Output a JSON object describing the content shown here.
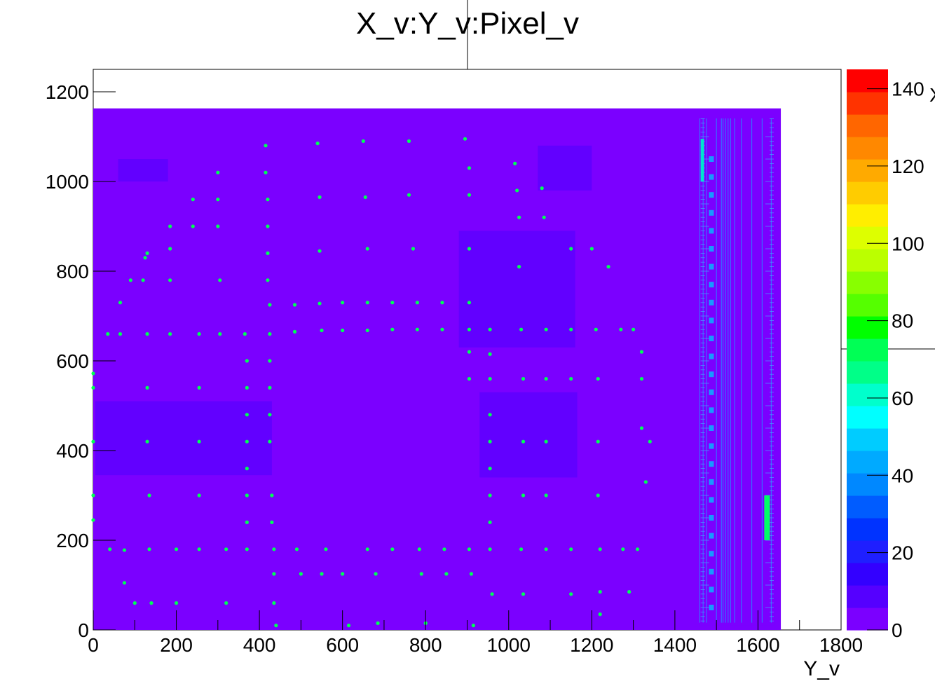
{
  "chart_data": {
    "type": "heatmap",
    "title": "X_v:Y_v:Pixel_v",
    "xlabel": "Y_v",
    "zlabel_partial": "X",
    "xlim": [
      0,
      1800
    ],
    "ylim": [
      0,
      1250
    ],
    "zlim": [
      0,
      145
    ],
    "x_ticks": [
      "0",
      "200",
      "400",
      "600",
      "800",
      "1000",
      "1200",
      "1400",
      "1600",
      "1800"
    ],
    "y_ticks": [
      "0",
      "200",
      "400",
      "600",
      "800",
      "1000",
      "1200"
    ],
    "z_ticks": [
      "0",
      "20",
      "40",
      "60",
      "80",
      "100",
      "120",
      "140"
    ],
    "palette": [
      "#7b00ff",
      "#5500ff",
      "#3300ff",
      "#1f1fff",
      "#0033ff",
      "#005cff",
      "#0088ff",
      "#00aaff",
      "#00ccff",
      "#00ffff",
      "#00ffcc",
      "#00ff88",
      "#00ff55",
      "#00ff00",
      "#55ff00",
      "#88ff00",
      "#bbff00",
      "#ddff00",
      "#ffee00",
      "#ffcc00",
      "#ffaa00",
      "#ff8800",
      "#ff6600",
      "#ff3300",
      "#ff0000"
    ],
    "background_value": 5,
    "filled_region": {
      "x": [
        0,
        1655
      ],
      "y": [
        0,
        1163
      ]
    },
    "ruler_region": {
      "x": [
        1460,
        1640
      ],
      "y": [
        10,
        1150
      ]
    },
    "spot_value": 70,
    "spots": [
      [
        0,
        572
      ],
      [
        0,
        540
      ],
      [
        0,
        420
      ],
      [
        0,
        300
      ],
      [
        0,
        245
      ],
      [
        35,
        660
      ],
      [
        40,
        180
      ],
      [
        65,
        730
      ],
      [
        65,
        660
      ],
      [
        75,
        178
      ],
      [
        75,
        105
      ],
      [
        90,
        780
      ],
      [
        100,
        60
      ],
      [
        120,
        780
      ],
      [
        125,
        830
      ],
      [
        130,
        840
      ],
      [
        130,
        660
      ],
      [
        130,
        540
      ],
      [
        130,
        420
      ],
      [
        135,
        300
      ],
      [
        135,
        180
      ],
      [
        140,
        60
      ],
      [
        185,
        900
      ],
      [
        185,
        850
      ],
      [
        185,
        780
      ],
      [
        185,
        660
      ],
      [
        200,
        180
      ],
      [
        200,
        60
      ],
      [
        240,
        960
      ],
      [
        240,
        900
      ],
      [
        255,
        660
      ],
      [
        255,
        540
      ],
      [
        255,
        420
      ],
      [
        255,
        300
      ],
      [
        255,
        180
      ],
      [
        300,
        1020
      ],
      [
        300,
        960
      ],
      [
        300,
        900
      ],
      [
        305,
        780
      ],
      [
        305,
        660
      ],
      [
        320,
        180
      ],
      [
        320,
        60
      ],
      [
        365,
        660
      ],
      [
        370,
        600
      ],
      [
        370,
        540
      ],
      [
        370,
        480
      ],
      [
        370,
        420
      ],
      [
        370,
        360
      ],
      [
        370,
        300
      ],
      [
        370,
        240
      ],
      [
        370,
        180
      ],
      [
        415,
        1080
      ],
      [
        415,
        1020
      ],
      [
        420,
        960
      ],
      [
        420,
        900
      ],
      [
        420,
        840
      ],
      [
        420,
        780
      ],
      [
        425,
        725
      ],
      [
        425,
        660
      ],
      [
        425,
        600
      ],
      [
        425,
        540
      ],
      [
        425,
        480
      ],
      [
        425,
        420
      ],
      [
        430,
        300
      ],
      [
        430,
        240
      ],
      [
        435,
        180
      ],
      [
        435,
        125
      ],
      [
        435,
        60
      ],
      [
        440,
        10
      ],
      [
        485,
        725
      ],
      [
        485,
        665
      ],
      [
        490,
        180
      ],
      [
        500,
        125
      ],
      [
        540,
        1085
      ],
      [
        545,
        965
      ],
      [
        545,
        845
      ],
      [
        545,
        728
      ],
      [
        550,
        668
      ],
      [
        550,
        125
      ],
      [
        560,
        180
      ],
      [
        600,
        730
      ],
      [
        600,
        668
      ],
      [
        600,
        125
      ],
      [
        615,
        10
      ],
      [
        650,
        1090
      ],
      [
        655,
        965
      ],
      [
        660,
        850
      ],
      [
        660,
        730
      ],
      [
        660,
        668
      ],
      [
        660,
        180
      ],
      [
        680,
        125
      ],
      [
        685,
        15
      ],
      [
        720,
        730
      ],
      [
        720,
        670
      ],
      [
        720,
        180
      ],
      [
        760,
        1090
      ],
      [
        760,
        970
      ],
      [
        770,
        850
      ],
      [
        780,
        730
      ],
      [
        780,
        670
      ],
      [
        785,
        180
      ],
      [
        790,
        125
      ],
      [
        800,
        15
      ],
      [
        840,
        730
      ],
      [
        840,
        670
      ],
      [
        845,
        180
      ],
      [
        850,
        125
      ],
      [
        895,
        1095
      ],
      [
        905,
        1030
      ],
      [
        905,
        970
      ],
      [
        905,
        850
      ],
      [
        905,
        730
      ],
      [
        905,
        670
      ],
      [
        905,
        620
      ],
      [
        905,
        560
      ],
      [
        905,
        180
      ],
      [
        910,
        125
      ],
      [
        915,
        10
      ],
      [
        955,
        670
      ],
      [
        955,
        615
      ],
      [
        955,
        560
      ],
      [
        955,
        480
      ],
      [
        955,
        420
      ],
      [
        955,
        360
      ],
      [
        955,
        300
      ],
      [
        955,
        240
      ],
      [
        955,
        180
      ],
      [
        960,
        80
      ],
      [
        1015,
        1040
      ],
      [
        1020,
        980
      ],
      [
        1025,
        920
      ],
      [
        1025,
        810
      ],
      [
        1030,
        670
      ],
      [
        1035,
        560
      ],
      [
        1035,
        420
      ],
      [
        1035,
        300
      ],
      [
        1030,
        180
      ],
      [
        1035,
        80
      ],
      [
        1080,
        985
      ],
      [
        1085,
        920
      ],
      [
        1090,
        670
      ],
      [
        1090,
        560
      ],
      [
        1090,
        420
      ],
      [
        1090,
        300
      ],
      [
        1090,
        180
      ],
      [
        1150,
        850
      ],
      [
        1150,
        670
      ],
      [
        1150,
        560
      ],
      [
        1150,
        180
      ],
      [
        1150,
        80
      ],
      [
        1200,
        850
      ],
      [
        1210,
        670
      ],
      [
        1215,
        560
      ],
      [
        1215,
        420
      ],
      [
        1215,
        300
      ],
      [
        1220,
        180
      ],
      [
        1220,
        85
      ],
      [
        1220,
        35
      ],
      [
        1240,
        810
      ],
      [
        1270,
        670
      ],
      [
        1275,
        180
      ],
      [
        1290,
        85
      ],
      [
        1300,
        670
      ],
      [
        1310,
        180
      ],
      [
        1320,
        620
      ],
      [
        1320,
        560
      ],
      [
        1320,
        450
      ],
      [
        1330,
        330
      ],
      [
        1340,
        420
      ]
    ]
  }
}
